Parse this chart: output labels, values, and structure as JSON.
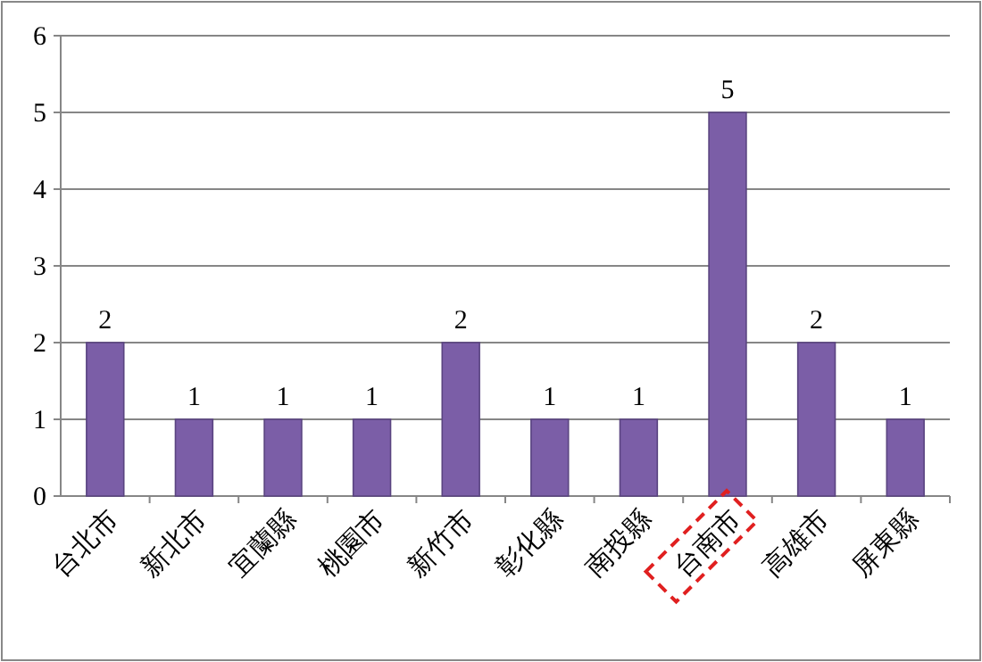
{
  "chart_data": {
    "type": "bar",
    "categories": [
      "台北市",
      "新北市",
      "宜蘭縣",
      "桃園市",
      "新竹市",
      "彰化縣",
      "南投縣",
      "台南市",
      "高雄市",
      "屏東縣"
    ],
    "values": [
      2,
      1,
      1,
      1,
      2,
      1,
      1,
      5,
      2,
      1
    ],
    "color": "#7b5ea7",
    "ylim": [
      0,
      6
    ],
    "yticks": [
      0,
      1,
      2,
      3,
      4,
      5,
      6
    ],
    "grid": "y",
    "data_labels": true
  }
}
